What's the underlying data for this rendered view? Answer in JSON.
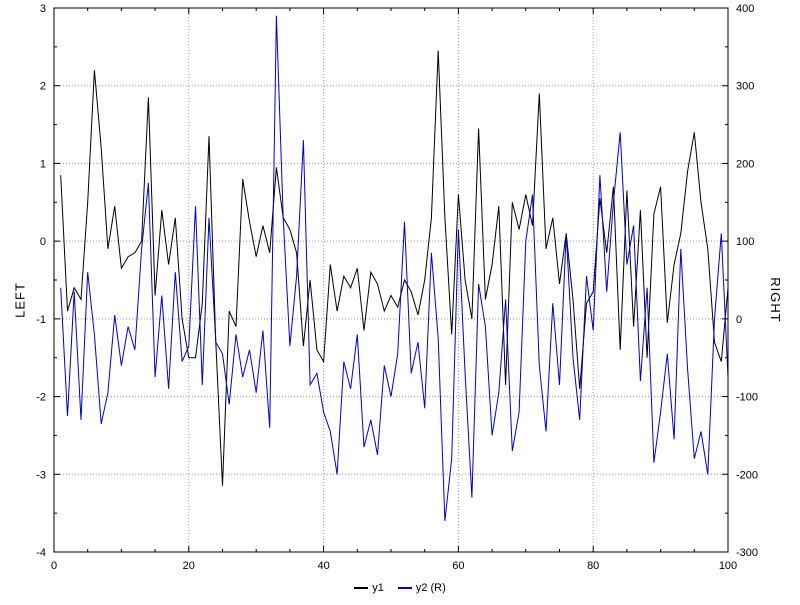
{
  "chart_data": {
    "type": "line",
    "title": "",
    "xlabel": "",
    "ylabel_left": "LEFT",
    "ylabel_right": "RIGHT",
    "xlim": [
      0,
      100
    ],
    "left_ylim": [
      -4,
      3
    ],
    "right_ylim": [
      -300,
      400
    ],
    "x_ticks": [
      0,
      20,
      40,
      60,
      80,
      100
    ],
    "x_minor_step": 5,
    "left_ticks": [
      3,
      2,
      1,
      0,
      -1,
      -2,
      -3,
      -4
    ],
    "left_minor_step": 0.5,
    "right_ticks": [
      400,
      300,
      200,
      100,
      0,
      -100,
      -200,
      -300
    ],
    "grid": "dotted",
    "grid_color": "#999999",
    "axis_color": "#000000",
    "legend_position": "bottom-center",
    "series": [
      {
        "name": "y1",
        "axis": "left",
        "color": "#000000",
        "x_start": 1,
        "x_step": 1,
        "values": [
          0.85,
          -0.9,
          -0.6,
          -0.75,
          0.5,
          2.2,
          1.2,
          -0.1,
          0.45,
          -0.35,
          -0.2,
          -0.15,
          0.0,
          1.85,
          -0.7,
          0.4,
          -0.3,
          0.3,
          -1.0,
          -1.5,
          -1.5,
          -0.8,
          1.35,
          -1.3,
          -3.15,
          -0.9,
          -1.1,
          0.8,
          0.25,
          -0.2,
          0.2,
          -0.15,
          0.95,
          0.3,
          0.15,
          -0.15,
          -1.35,
          -0.5,
          -1.4,
          -1.55,
          -0.3,
          -0.9,
          -0.45,
          -0.6,
          -0.35,
          -1.15,
          -0.4,
          -0.55,
          -0.9,
          -0.7,
          -0.85,
          -0.5,
          -0.65,
          -0.95,
          -0.5,
          0.3,
          2.45,
          0.3,
          -1.2,
          0.6,
          -0.5,
          -1.0,
          1.45,
          -0.75,
          -0.3,
          0.45,
          -1.85,
          0.5,
          0.15,
          0.6,
          0.2,
          1.9,
          -0.1,
          0.3,
          -0.55,
          0.1,
          -0.75,
          -1.9,
          -0.8,
          -0.65,
          0.55,
          -0.15,
          0.7,
          -1.4,
          0.65,
          -1.1,
          0.4,
          -1.5,
          0.35,
          0.7,
          -1.05,
          -0.3,
          0.1,
          0.9,
          1.4,
          0.5,
          -0.1,
          -1.3,
          -1.55,
          -0.6
        ]
      },
      {
        "name": "y2 (R)",
        "axis": "right",
        "color": "#0000cc",
        "x_start": 1,
        "x_step": 1,
        "values": [
          40,
          -125,
          35,
          -130,
          60,
          -20,
          -135,
          -95,
          5,
          -60,
          -10,
          -40,
          90,
          175,
          -75,
          30,
          -90,
          60,
          -55,
          -35,
          145,
          -85,
          130,
          -30,
          -45,
          -110,
          -20,
          -75,
          -40,
          -95,
          -15,
          -140,
          390,
          130,
          -35,
          55,
          230,
          -85,
          -70,
          -120,
          -145,
          -200,
          -55,
          -90,
          -20,
          -165,
          -130,
          -175,
          -60,
          -100,
          -45,
          125,
          -70,
          -30,
          -115,
          85,
          -25,
          -260,
          -180,
          115,
          -70,
          -230,
          45,
          -10,
          -150,
          -95,
          25,
          -170,
          -120,
          100,
          160,
          -60,
          -145,
          20,
          -85,
          110,
          -50,
          -130,
          55,
          -15,
          185,
          35,
          150,
          240,
          70,
          120,
          -80,
          40,
          -185,
          -120,
          -45,
          -155,
          90,
          -65,
          -180,
          -145,
          -200,
          0,
          110,
          -75
        ]
      }
    ]
  }
}
